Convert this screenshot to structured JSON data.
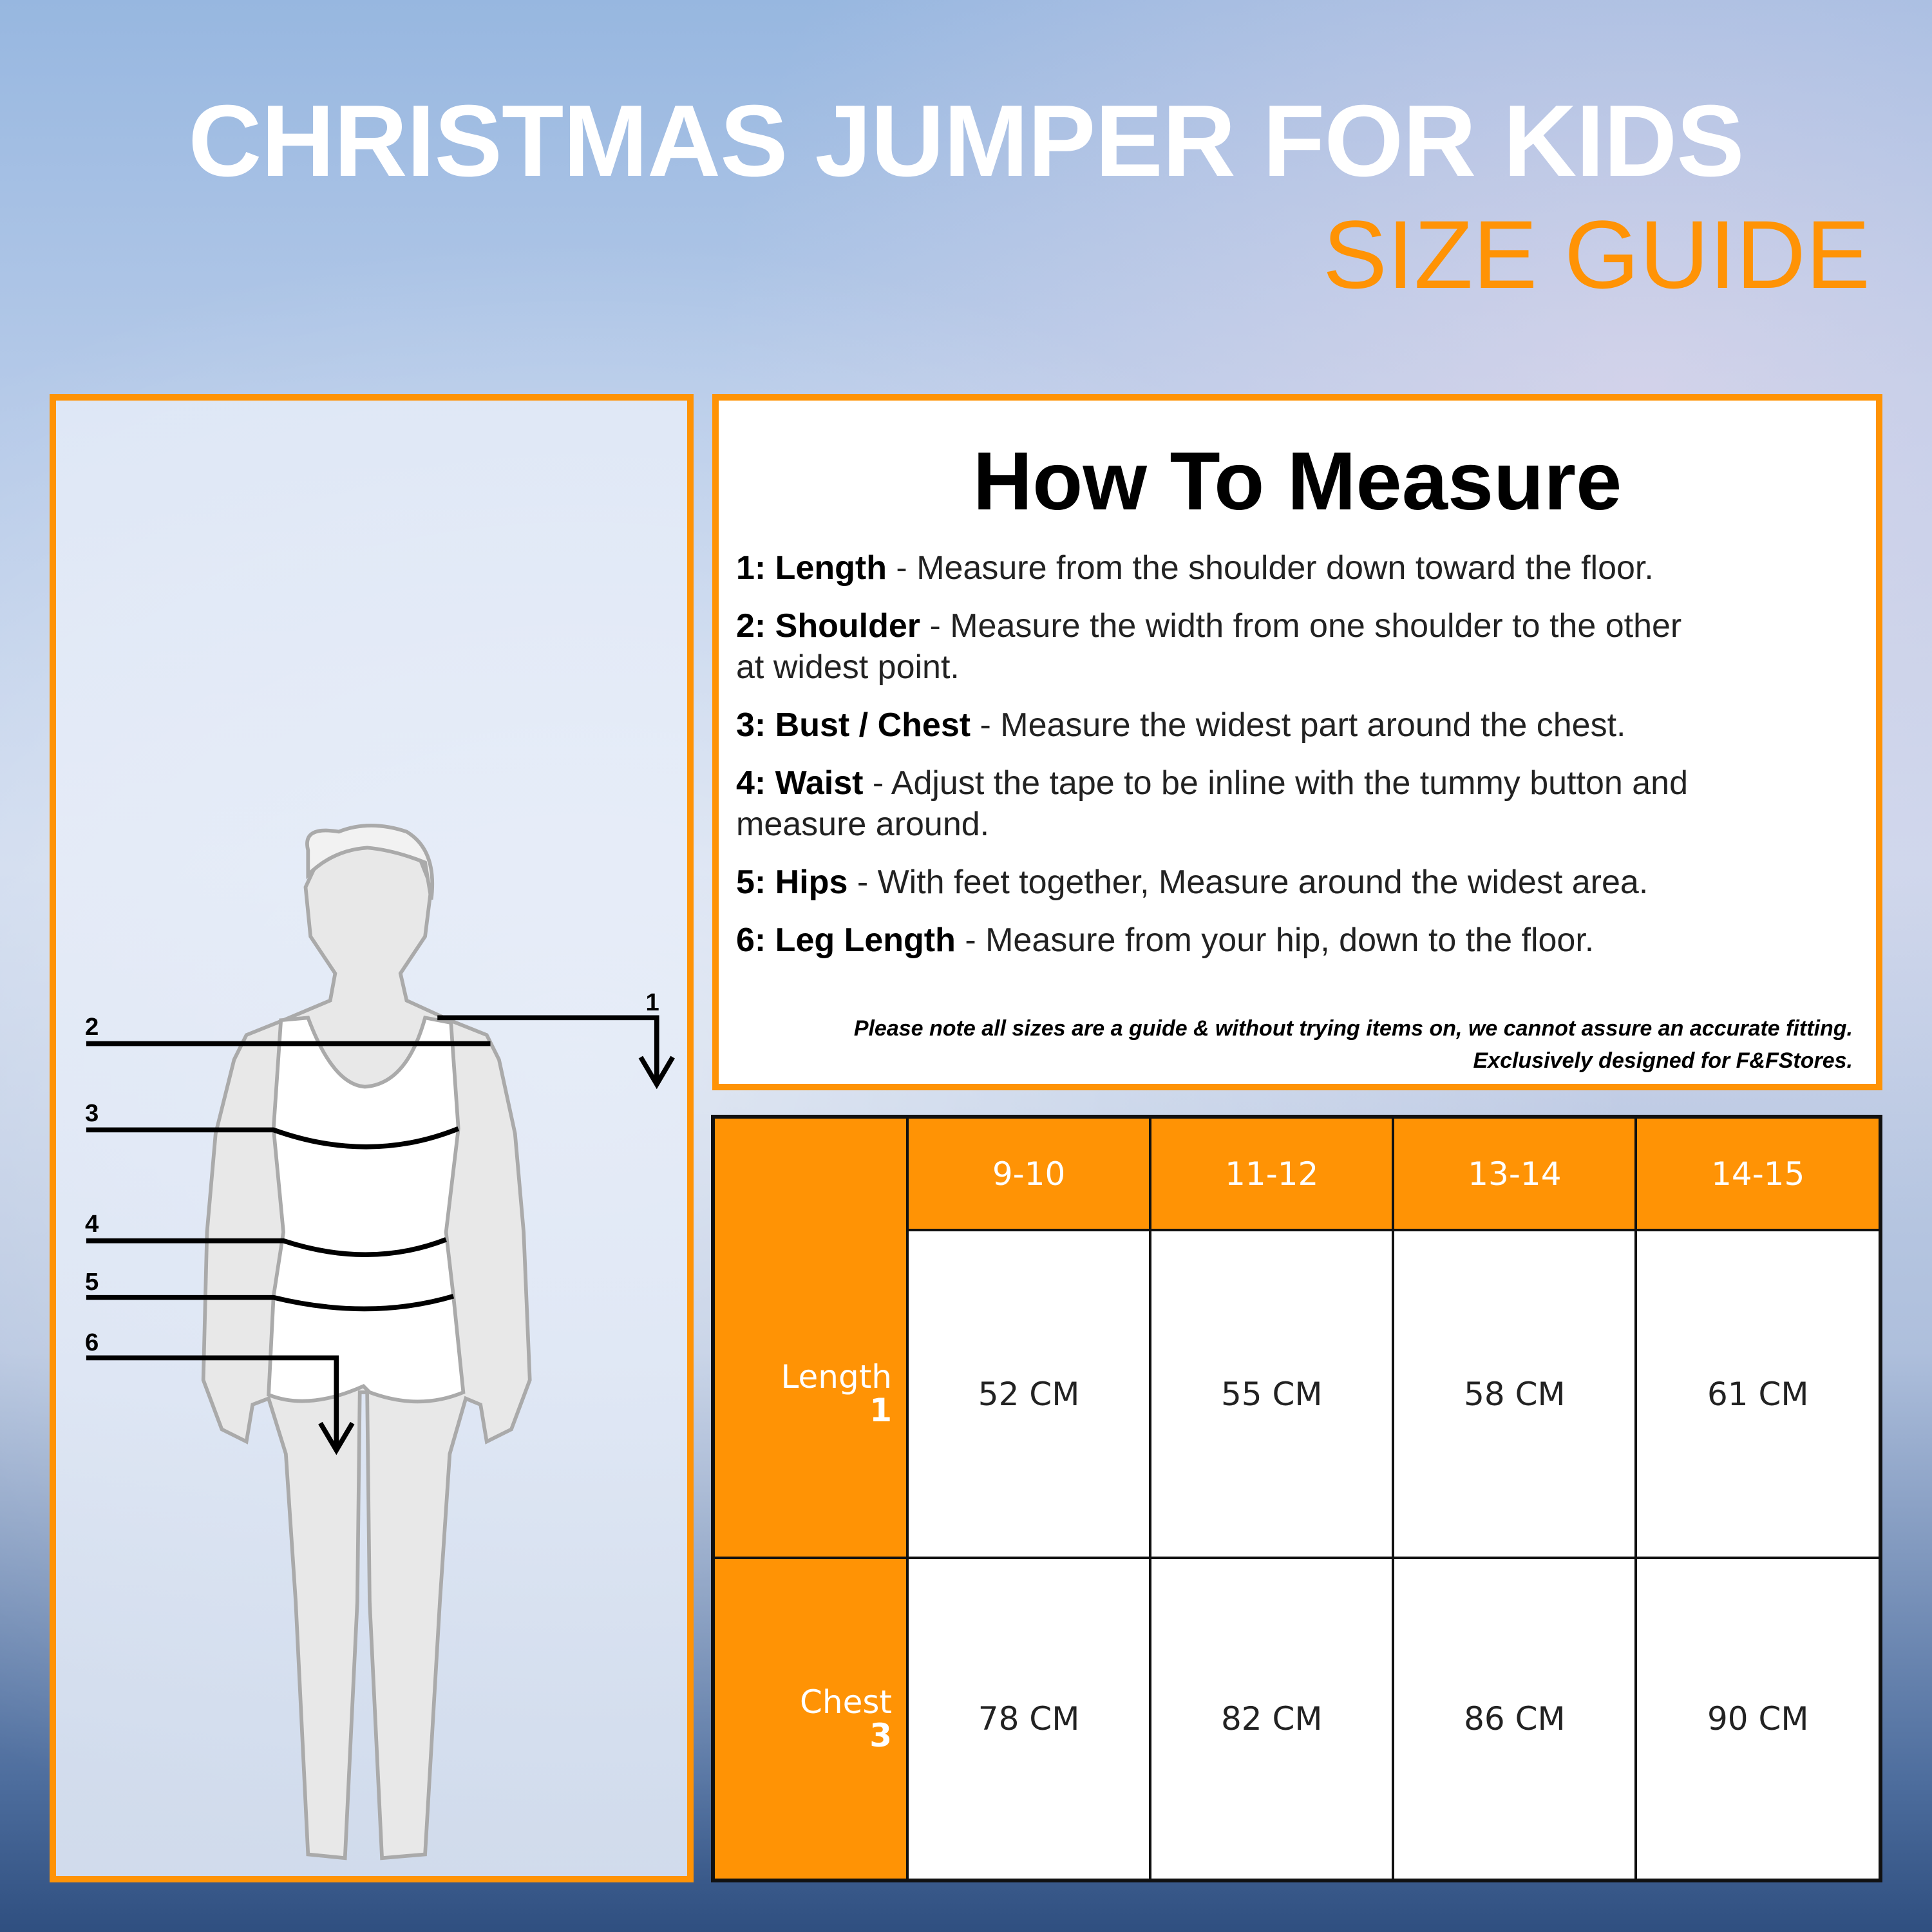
{
  "header": {
    "title": "CHRISTMAS JUMPER FOR KIDS",
    "subtitle": "SIZE GUIDE"
  },
  "colors": {
    "accent": "#ff9305",
    "text": "#000000"
  },
  "figure": {
    "labels": [
      "1",
      "2",
      "3",
      "4",
      "5",
      "6"
    ]
  },
  "how_to_measure": {
    "title": "How To Measure",
    "items": [
      {
        "label": "1: Length",
        "text": " - Measure from the shoulder down toward the floor."
      },
      {
        "label": "2: Shoulder",
        "text": "  - Measure the width from one shoulder to the other at widest point."
      },
      {
        "label": "3: Bust / Chest",
        "text": " - Measure the widest part around the chest."
      },
      {
        "label": "4: Waist",
        "text": " - Adjust the tape to be inline with the tummy button and measure around."
      },
      {
        "label": "5: Hips",
        "text": " - With feet together, Measure around the widest area."
      },
      {
        "label": "6: Leg Length",
        "text": " - Measure from your hip, down to the floor."
      }
    ],
    "note_line1": "Please note all sizes are a guide & without trying items on, we cannot assure an accurate fitting.",
    "note_line2": "Exclusively designed for F&FStores."
  },
  "size_table": {
    "sizes": [
      "9-10",
      "11-12",
      "13-14",
      "14-15"
    ],
    "rows": [
      {
        "name": "Length",
        "num": "1",
        "values": [
          "52 CM",
          "55 CM",
          "58 CM",
          "61 CM"
        ]
      },
      {
        "name": "Chest",
        "num": "3",
        "values": [
          "78 CM",
          "82 CM",
          "86 CM",
          "90 CM"
        ]
      }
    ]
  }
}
